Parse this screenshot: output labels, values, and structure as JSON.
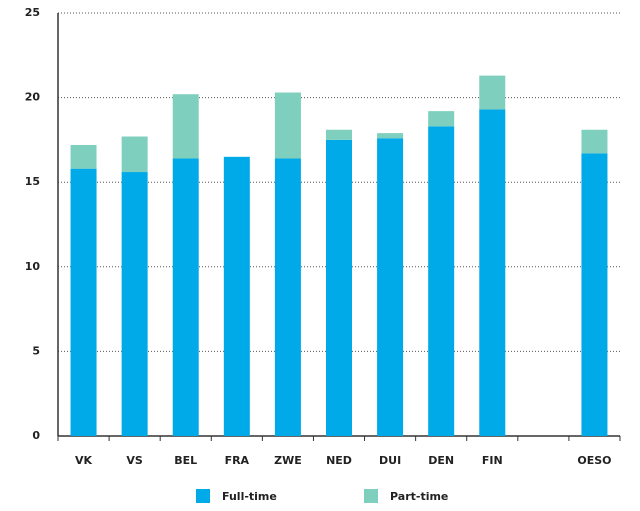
{
  "chart_data": {
    "type": "stacked-bar",
    "categories": [
      "VK",
      "VS",
      "BEL",
      "FRA",
      "ZWE",
      "NED",
      "DUI",
      "DEN",
      "FIN",
      null,
      "OESO"
    ],
    "series": [
      {
        "name": "Full-time",
        "color": "#00a9e8",
        "values": [
          15.8,
          15.6,
          16.4,
          16.5,
          16.4,
          17.5,
          17.6,
          18.3,
          19.3,
          null,
          16.7
        ]
      },
      {
        "name": "Part-time",
        "color": "#7ecfbe",
        "values": [
          1.4,
          2.1,
          3.8,
          0,
          3.9,
          0.6,
          0.3,
          0.9,
          2.0,
          null,
          1.4
        ]
      }
    ],
    "ylim": [
      0,
      25
    ],
    "yticks": [
      0,
      5,
      10,
      15,
      20,
      25
    ],
    "grid": true,
    "legend": "bottom"
  }
}
